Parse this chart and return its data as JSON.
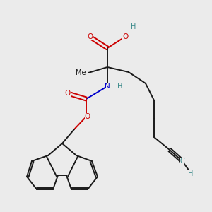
{
  "bg_color": "#ebebeb",
  "figsize": [
    3.0,
    3.0
  ],
  "dpi": 100,
  "lw": 1.4,
  "colors": {
    "O": "#cc0000",
    "N": "#0000cc",
    "C": "#1a1a1a",
    "H": "#3a8a8a"
  },
  "font_size": 7.5,
  "font_size_h": 7.0
}
